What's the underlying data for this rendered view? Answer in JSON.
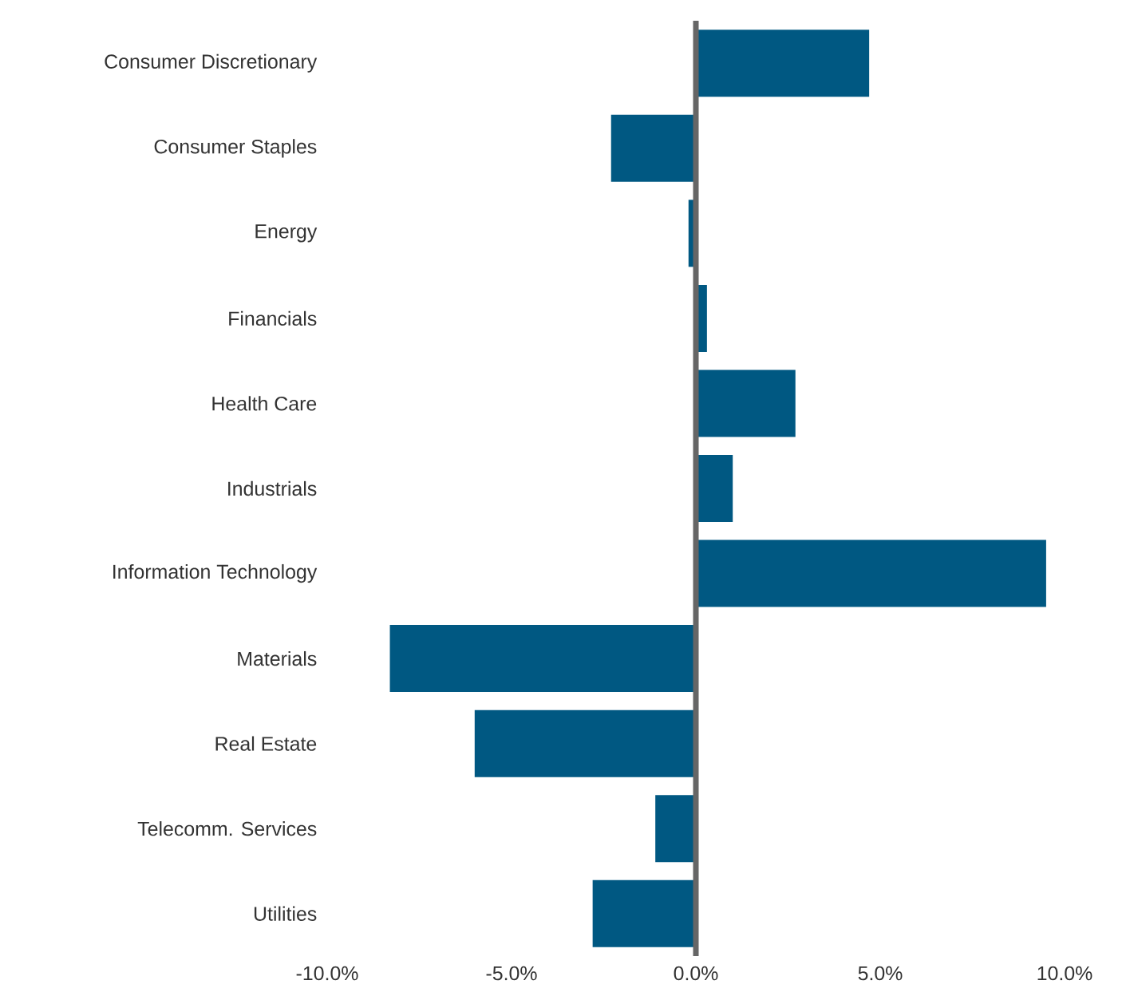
{
  "chart_data": {
    "type": "bar",
    "orientation": "horizontal",
    "categories": [
      "Consumer Discretionary",
      "Consumer Staples",
      "Energy",
      "Financials",
      "Health Care",
      "Industrials",
      "Information Technology",
      "Materials",
      "Real Estate",
      "Telecomm. Services",
      "Utilities"
    ],
    "values": [
      4.7,
      -2.3,
      -0.2,
      0.3,
      2.7,
      1.0,
      9.5,
      -8.3,
      -6.0,
      -1.1,
      -2.8
    ],
    "color": "#005882",
    "xlim": [
      -10,
      10
    ],
    "xticks": [
      {
        "value": -10,
        "label": "-10.0%"
      },
      {
        "value": -5,
        "label": "-5.0%"
      },
      {
        "value": 0,
        "label": "0.0%"
      },
      {
        "value": 5,
        "label": "5.0%"
      },
      {
        "value": 10,
        "label": "10.0%"
      }
    ]
  }
}
